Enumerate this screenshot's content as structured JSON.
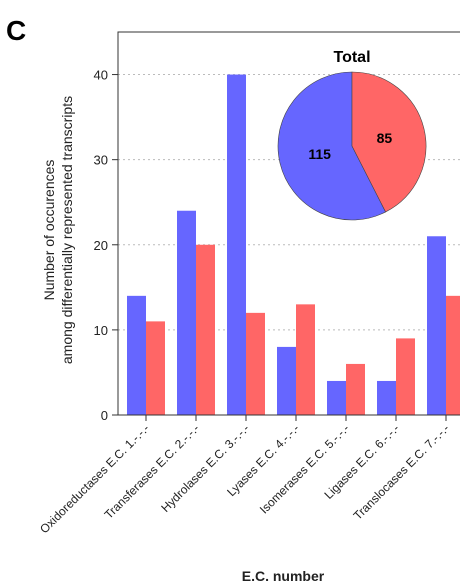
{
  "panel_label": "C",
  "colors": {
    "series1": "#6666ff",
    "series2": "#ff6666"
  },
  "chart_data": [
    {
      "type": "bar",
      "categories": [
        "Oxidoreductases E.C. 1.-.-.-",
        "Transferases E.C. 2.-.-.-",
        "Hydrolases E.C. 3.-.-.-",
        "Lyases E.C. 4.-.-.-",
        "Isomerases E.C. 5.-.-.-",
        "Ligases E.C. 6.-.-.-",
        "Translocases E.C. 7.-.-.-"
      ],
      "series": [
        {
          "values": [
            14,
            24,
            40,
            8,
            4,
            4,
            21
          ]
        },
        {
          "values": [
            11,
            20,
            12,
            13,
            6,
            9,
            14
          ]
        }
      ],
      "xlabel": "E.C. number",
      "ylabel": [
        "Number of occurences",
        "among differentially represented transcripts"
      ],
      "ylim": [
        0,
        45
      ],
      "yticks": [
        0,
        10,
        20,
        30,
        40
      ],
      "grid": "horizontal-dotted"
    },
    {
      "type": "pie",
      "title": "Total",
      "values": [
        115,
        85
      ],
      "labels": [
        "115",
        "85"
      ]
    }
  ]
}
